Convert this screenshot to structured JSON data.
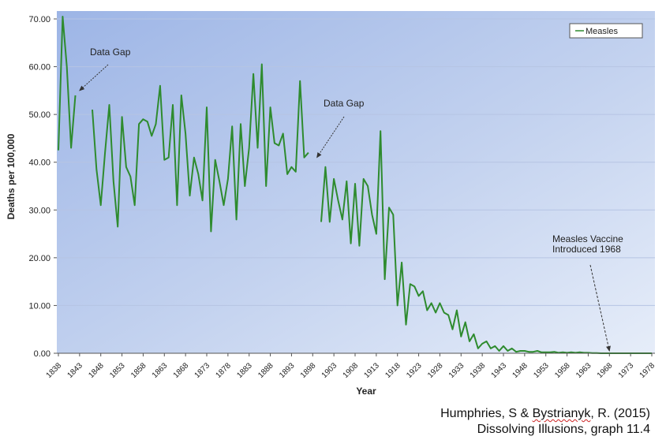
{
  "chart_data": {
    "type": "line",
    "title": "",
    "xlabel": "Year",
    "ylabel": "Deaths per 100,000",
    "ylim": [
      0,
      70
    ],
    "xlim": [
      1838,
      1978
    ],
    "y_ticks": [
      "0.00",
      "10.00",
      "20.00",
      "30.00",
      "40.00",
      "50.00",
      "60.00",
      "70.00"
    ],
    "x_ticks": [
      "1838",
      "1843",
      "1848",
      "1853",
      "1858",
      "1863",
      "1868",
      "1873",
      "1878",
      "1883",
      "1888",
      "1893",
      "1898",
      "1903",
      "1908",
      "1913",
      "1918",
      "1923",
      "1928",
      "1933",
      "1938",
      "1943",
      "1948",
      "1953",
      "1958",
      "1963",
      "1968",
      "1973",
      "1978"
    ],
    "grid": true,
    "legend": {
      "position": "top-right",
      "entries": [
        "Measles"
      ]
    },
    "line_color": "#2e8b2e",
    "series": [
      {
        "name": "Measles",
        "segments": [
          [
            [
              1838,
              42.5
            ],
            [
              1839,
              70.5
            ],
            [
              1840,
              60.0
            ],
            [
              1841,
              43.0
            ],
            [
              1842,
              54.0
            ]
          ],
          [
            [
              1846,
              51.0
            ],
            [
              1847,
              38.5
            ],
            [
              1848,
              31.0
            ],
            [
              1849,
              42.0
            ],
            [
              1850,
              52.0
            ],
            [
              1851,
              36.0
            ],
            [
              1852,
              26.5
            ],
            [
              1853,
              49.5
            ],
            [
              1854,
              39.0
            ],
            [
              1855,
              37.0
            ],
            [
              1856,
              31.0
            ],
            [
              1857,
              48.0
            ],
            [
              1858,
              49.0
            ],
            [
              1859,
              48.5
            ],
            [
              1860,
              45.5
            ],
            [
              1861,
              48.0
            ],
            [
              1862,
              56.0
            ],
            [
              1863,
              40.5
            ],
            [
              1864,
              41.0
            ],
            [
              1865,
              52.0
            ],
            [
              1866,
              31.0
            ],
            [
              1867,
              54.0
            ],
            [
              1868,
              46.0
            ],
            [
              1869,
              33.0
            ],
            [
              1870,
              41.0
            ],
            [
              1871,
              37.5
            ],
            [
              1872,
              32.0
            ],
            [
              1873,
              51.5
            ],
            [
              1874,
              25.5
            ],
            [
              1875,
              40.5
            ],
            [
              1876,
              36.0
            ],
            [
              1877,
              31.0
            ],
            [
              1878,
              36.5
            ],
            [
              1879,
              47.5
            ],
            [
              1880,
              28.0
            ],
            [
              1881,
              48.0
            ],
            [
              1882,
              35.0
            ],
            [
              1883,
              43.0
            ],
            [
              1884,
              58.5
            ],
            [
              1885,
              43.0
            ],
            [
              1886,
              60.5
            ],
            [
              1887,
              35.0
            ],
            [
              1888,
              51.5
            ],
            [
              1889,
              44.0
            ],
            [
              1890,
              43.5
            ],
            [
              1891,
              46.0
            ],
            [
              1892,
              37.5
            ],
            [
              1893,
              39.0
            ],
            [
              1894,
              38.0
            ],
            [
              1895,
              57.0
            ],
            [
              1896,
              41.0
            ],
            [
              1897,
              42.0
            ]
          ],
          [
            [
              1900,
              27.5
            ],
            [
              1901,
              39.0
            ],
            [
              1902,
              27.5
            ],
            [
              1903,
              36.5
            ],
            [
              1904,
              32.0
            ],
            [
              1905,
              28.0
            ],
            [
              1906,
              36.0
            ],
            [
              1907,
              23.0
            ],
            [
              1908,
              35.5
            ],
            [
              1909,
              22.5
            ],
            [
              1910,
              36.5
            ],
            [
              1911,
              35.0
            ],
            [
              1912,
              29.0
            ],
            [
              1913,
              25.0
            ],
            [
              1914,
              46.5
            ],
            [
              1915,
              15.5
            ],
            [
              1916,
              30.5
            ],
            [
              1917,
              29.0
            ],
            [
              1918,
              10.0
            ],
            [
              1919,
              19.0
            ],
            [
              1920,
              6.0
            ],
            [
              1921,
              14.5
            ],
            [
              1922,
              14.0
            ],
            [
              1923,
              12.0
            ],
            [
              1924,
              13.0
            ],
            [
              1925,
              9.0
            ],
            [
              1926,
              10.5
            ],
            [
              1927,
              8.5
            ],
            [
              1928,
              10.5
            ],
            [
              1929,
              8.5
            ],
            [
              1930,
              8.0
            ],
            [
              1931,
              5.0
            ],
            [
              1932,
              9.0
            ],
            [
              1933,
              3.5
            ],
            [
              1934,
              6.5
            ],
            [
              1935,
              2.5
            ],
            [
              1936,
              4.0
            ],
            [
              1937,
              1.0
            ],
            [
              1938,
              2.0
            ],
            [
              1939,
              2.5
            ],
            [
              1940,
              1.0
            ],
            [
              1941,
              1.5
            ],
            [
              1942,
              0.5
            ],
            [
              1943,
              1.5
            ],
            [
              1944,
              0.5
            ],
            [
              1945,
              1.0
            ],
            [
              1946,
              0.3
            ],
            [
              1947,
              0.5
            ],
            [
              1948,
              0.5
            ],
            [
              1949,
              0.3
            ],
            [
              1950,
              0.3
            ],
            [
              1951,
              0.5
            ],
            [
              1952,
              0.2
            ],
            [
              1953,
              0.2
            ],
            [
              1954,
              0.2
            ],
            [
              1955,
              0.3
            ],
            [
              1956,
              0.1
            ],
            [
              1957,
              0.2
            ],
            [
              1958,
              0.1
            ],
            [
              1959,
              0.2
            ],
            [
              1960,
              0.1
            ],
            [
              1961,
              0.2
            ],
            [
              1962,
              0.1
            ],
            [
              1963,
              0.1
            ],
            [
              1964,
              0.05
            ],
            [
              1965,
              0.05
            ],
            [
              1966,
              0.0
            ],
            [
              1967,
              0.0
            ],
            [
              1968,
              0.0
            ],
            [
              1969,
              0.0
            ],
            [
              1970,
              0.0
            ],
            [
              1971,
              0.0
            ],
            [
              1972,
              0.0
            ],
            [
              1973,
              0.0
            ],
            [
              1974,
              0.0
            ],
            [
              1975,
              0.0
            ],
            [
              1976,
              0.0
            ],
            [
              1977,
              0.0
            ],
            [
              1978,
              0.0
            ]
          ]
        ]
      }
    ],
    "annotations": [
      {
        "lines": [
          "Data Gap"
        ],
        "arrow_to": [
          1843,
          55
        ]
      },
      {
        "lines": [
          "Data Gap"
        ],
        "arrow_to": [
          1899,
          41
        ]
      },
      {
        "lines": [
          "Measles Vaccine",
          "Introduced 1968"
        ],
        "arrow_to": [
          1968,
          0.5
        ],
        "arrow_style": "dashed"
      }
    ]
  },
  "credit": {
    "line1_before": "Humphries, S & ",
    "line1_underlined": "Bystrianyk",
    "line1_after": ", R. (2015)",
    "line2": "Dissolving Illusions, graph 11.4"
  }
}
